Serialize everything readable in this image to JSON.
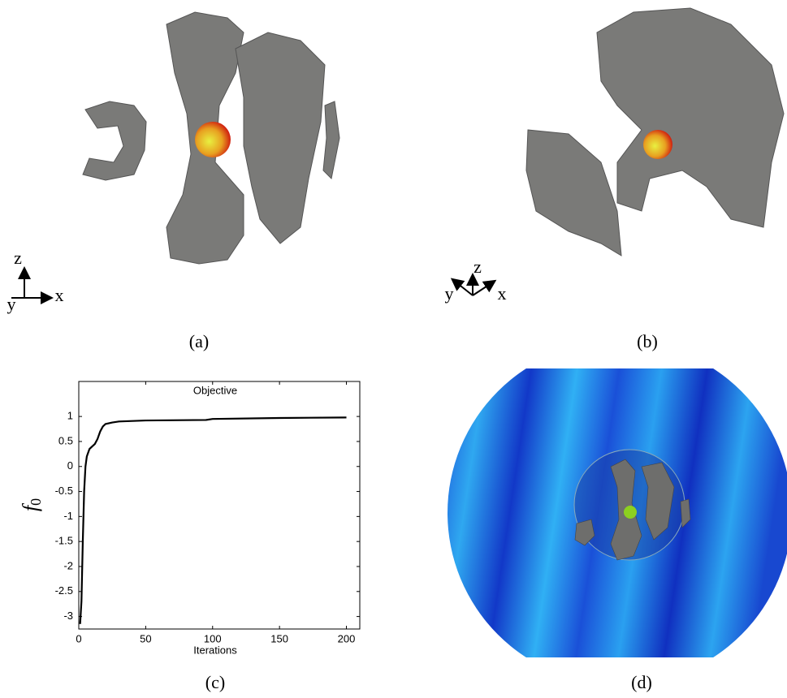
{
  "panels": {
    "a": {
      "caption": "(a)",
      "axes": {
        "z": "z",
        "y": "y",
        "x": "x"
      }
    },
    "b": {
      "caption": "(b)",
      "axes": {
        "z": "z",
        "y": "y",
        "x": "x"
      }
    },
    "c": {
      "caption": "(c)"
    },
    "d": {
      "caption": "(d)"
    }
  },
  "chart_data": {
    "type": "line",
    "title": "Objective",
    "xlabel": "Iterations",
    "ylabel": "f",
    "ylabel_subscript": "0",
    "x": [
      1,
      2,
      3,
      4,
      5,
      6,
      8,
      10,
      12,
      14,
      16,
      18,
      20,
      25,
      30,
      50,
      95,
      100,
      150,
      200
    ],
    "series": [
      {
        "name": "Objective",
        "color": "#000000",
        "values": [
          -3.15,
          -2.7,
          -1.5,
          -0.5,
          0,
          0.2,
          0.35,
          0.4,
          0.45,
          0.55,
          0.7,
          0.8,
          0.85,
          0.88,
          0.9,
          0.92,
          0.93,
          0.95,
          0.97,
          0.98
        ]
      }
    ],
    "xlim": [
      0,
      210
    ],
    "ylim": [
      -3.25,
      1.7
    ],
    "xticks": [
      0,
      50,
      100,
      150,
      200
    ],
    "yticks": [
      1,
      0.5,
      0,
      -0.5,
      -1,
      -1.5,
      -2,
      -2.5,
      -3
    ]
  }
}
